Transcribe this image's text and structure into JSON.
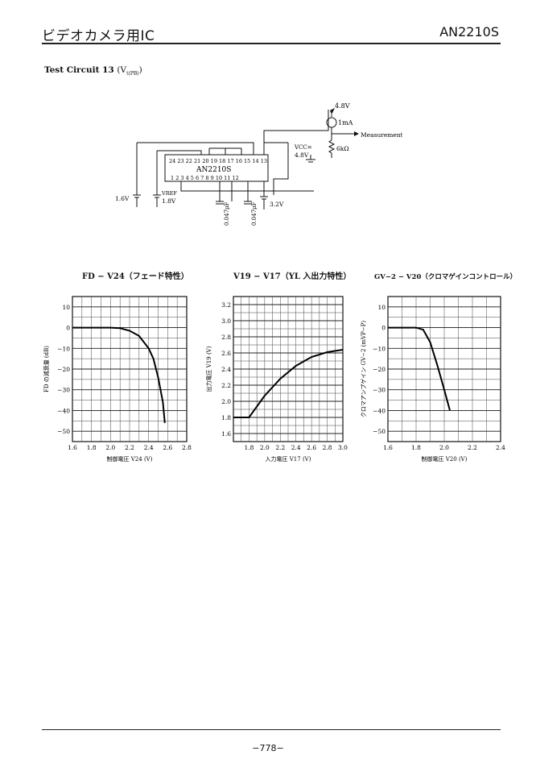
{
  "header": {
    "category": "ビデオカメラ用IC",
    "part_number": "AN2210S"
  },
  "section": {
    "title": "Test Circuit 13",
    "subtitle": "(V",
    "subtitle_sub": "t(PB)",
    "subtitle_end": ")"
  },
  "circuit": {
    "chip_name": "AN2210S",
    "top_pins": "24 23 22 21 20 19 18 17 16 15 14 13",
    "bottom_pins": "1  2  3  4  5  6  7  8  9  10 11 12",
    "supply_top": "4.8V",
    "current_source": "1mA",
    "measurement": "Measurement",
    "vcc_label": "VCC=",
    "vcc_value": "4.8V",
    "resistor": "6kΩ",
    "left_voltage": "1.6V",
    "vref_label": "VREF",
    "vref_value": "1.8V",
    "cap1": "0.047μF",
    "cap2": "0.047μF",
    "right_voltage": "3.2V"
  },
  "chart_data": [
    {
      "type": "line",
      "title": "FD − V24（フェード特性）",
      "xlabel": "制御電圧 V24 (V)",
      "ylabel": "FD の減衰量 (dB)",
      "xlim": [
        1.6,
        2.8
      ],
      "ylim": [
        -55,
        15
      ],
      "xticks": [
        "1.6",
        "1.8",
        "2.0",
        "2.2",
        "2.4",
        "2.6",
        "2.8"
      ],
      "yticks": [
        "10",
        "0",
        "−10",
        "−20",
        "−30",
        "−40",
        "−50"
      ],
      "x": [
        1.6,
        1.8,
        2.0,
        2.1,
        2.2,
        2.3,
        2.4,
        2.45,
        2.5,
        2.55,
        2.57
      ],
      "y": [
        0,
        0,
        0,
        -0.3,
        -1.5,
        -4,
        -10,
        -15,
        -24,
        -36,
        -46
      ]
    },
    {
      "type": "line",
      "title": "V19 − V17（YL 入出力特性）",
      "xlabel": "入力電圧 V17 (V)",
      "ylabel": "出力電圧 V19 (V)",
      "xlim": [
        1.6,
        3.0
      ],
      "ylim": [
        1.5,
        3.3
      ],
      "xticks": [
        "1.8",
        "2.0",
        "2.2",
        "2.4",
        "2.6",
        "2.8",
        "3.0"
      ],
      "yticks": [
        "3.2",
        "3.0",
        "2.8",
        "2.6",
        "2.4",
        "2.2",
        "2.0",
        "1.8",
        "1.6"
      ],
      "x": [
        1.6,
        1.8,
        2.0,
        2.2,
        2.4,
        2.6,
        2.8,
        3.0
      ],
      "y": [
        1.8,
        1.8,
        2.07,
        2.28,
        2.44,
        2.55,
        2.61,
        2.64
      ]
    },
    {
      "type": "line",
      "title": "GV−2 − V20（クロマゲインコントロール）",
      "xlabel": "制御電圧 V20 (V)",
      "ylabel": "クロマアンプゲイン GV−2 (mVP−P)",
      "xlim": [
        1.6,
        2.4
      ],
      "ylim": [
        -55,
        15
      ],
      "xticks": [
        "1.6",
        "1.8",
        "2.0",
        "2.2",
        "2.4"
      ],
      "yticks": [
        "10",
        "0",
        "−10",
        "−20",
        "−30",
        "−40",
        "−50"
      ],
      "x": [
        1.6,
        1.7,
        1.8,
        1.85,
        1.9,
        1.95,
        2.0,
        2.04
      ],
      "y": [
        0,
        0,
        0,
        -1,
        -7,
        -18,
        -30,
        -40
      ]
    }
  ],
  "footer": {
    "page": "−778−"
  }
}
